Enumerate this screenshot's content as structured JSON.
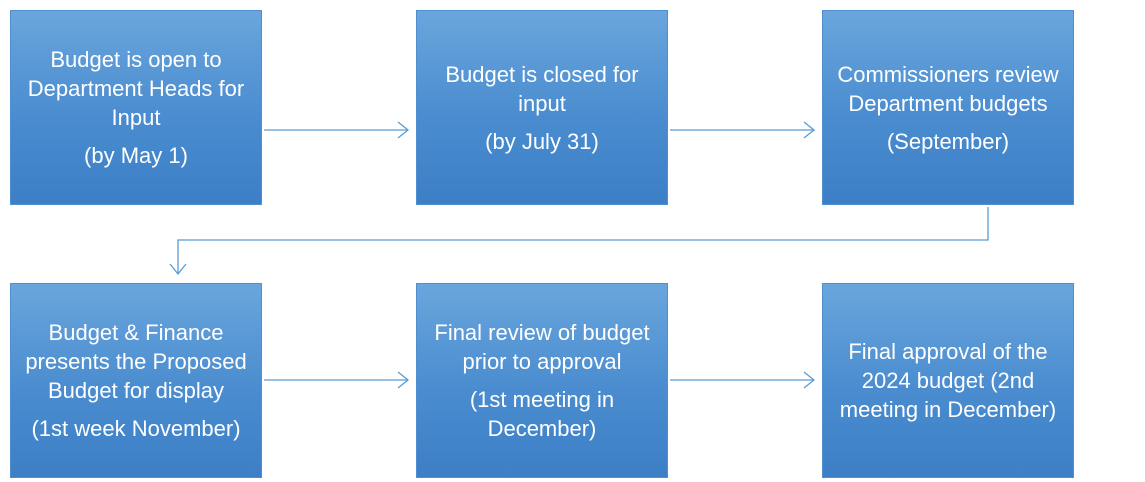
{
  "nodes": [
    {
      "lines": [
        "Budget is open to",
        "Department Heads for",
        "Input"
      ],
      "note": [
        "(by May 1)"
      ]
    },
    {
      "lines": [
        "Budget is closed for",
        "input"
      ],
      "note": [
        "(by July 31)"
      ]
    },
    {
      "lines": [
        "Commissioners review",
        "Department budgets"
      ],
      "note": [
        "(September)"
      ]
    },
    {
      "lines": [
        "Budget & Finance",
        "presents the Proposed",
        "Budget for display"
      ],
      "note": [
        "(1st week November)"
      ]
    },
    {
      "lines": [
        "Final review of budget",
        "prior to approval"
      ],
      "note": [
        "(1st meeting in",
        "December)"
      ]
    },
    {
      "lines": [
        "Final approval of the",
        "2024 budget (2nd",
        "meeting in December)"
      ],
      "note": []
    }
  ]
}
